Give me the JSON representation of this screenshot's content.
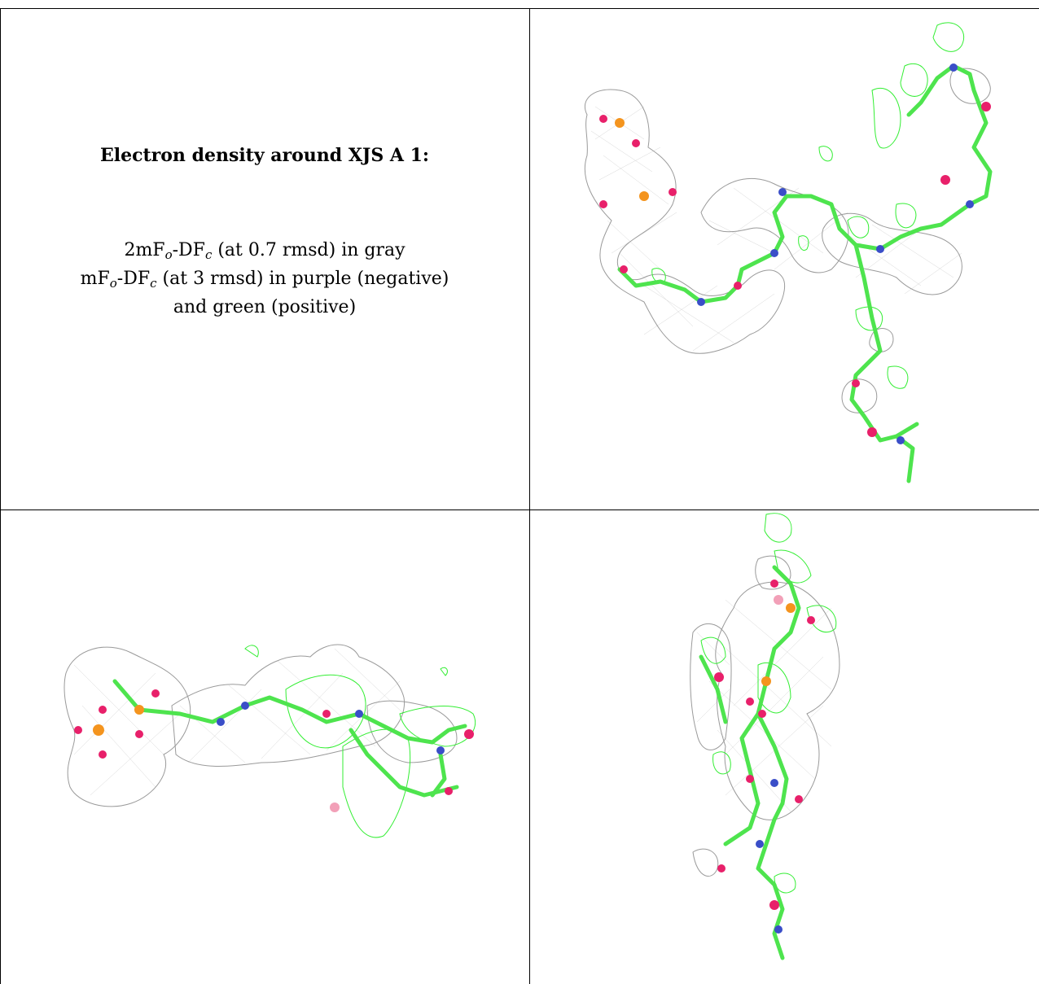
{
  "caption": {
    "title": "Electron density around XJS A 1:",
    "line1": {
      "a": "2mF",
      "a_sub": "o",
      "b": "-DF",
      "b_sub": "c",
      "rest": " (at 0.7 rmsd) in gray"
    },
    "line2": {
      "a": "mF",
      "a_sub": "o",
      "b": "-DF",
      "b_sub": "c",
      "rest": " (at 3 rmsd) in purple (negative)"
    },
    "line3": "and green (positive)"
  },
  "colors": {
    "density_2fofc": "#9a9a9a",
    "density_positive": "#33ee33",
    "density_negative": "#aa33aa",
    "carbon": "#4ee44e",
    "oxygen": "#e8206a",
    "nitrogen": "#3a4ec8",
    "phosphorus": "#f4941e"
  },
  "panels": [
    {
      "view": "view-1",
      "icon": "electron-density-map-image"
    },
    {
      "view": "view-2",
      "icon": "electron-density-map-image"
    },
    {
      "view": "view-3",
      "icon": "electron-density-map-image"
    }
  ]
}
